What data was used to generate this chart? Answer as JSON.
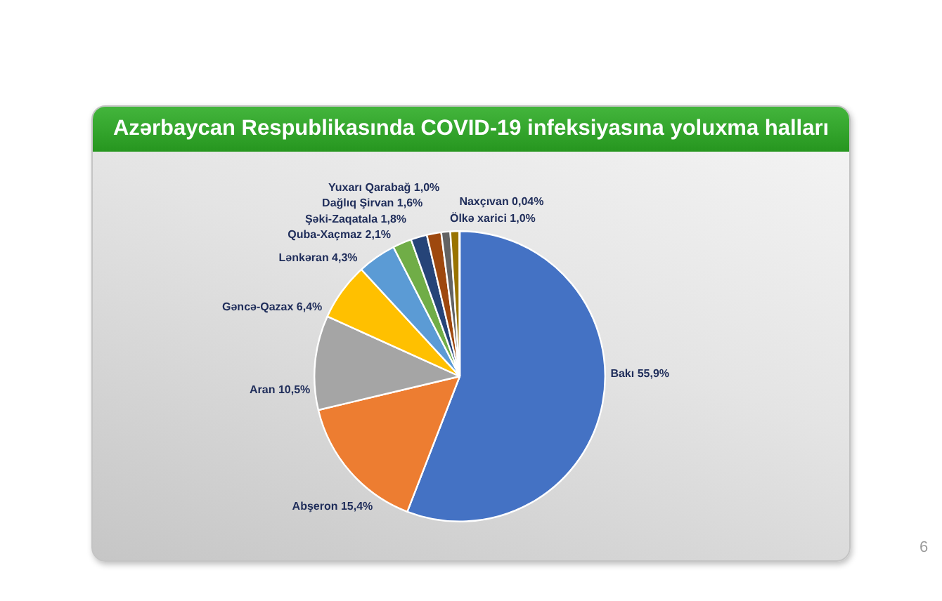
{
  "chart_data": {
    "type": "pie",
    "title": "Azərbaycan Respublikasında COVID-19 infeksiyasına yoluxma halları",
    "categories": [
      "Bakı",
      "Abşeron",
      "Aran",
      "Gəncə-Qazax",
      "Lənkəran",
      "Quba-Xaçmaz",
      "Şəki-Zaqatala",
      "Dağlıq Şirvan",
      "Yuxarı Qarabağ",
      "Ölkə xarici",
      "Naxçıvan"
    ],
    "values": [
      55.9,
      15.4,
      10.5,
      6.4,
      4.3,
      2.1,
      1.8,
      1.6,
      1.0,
      1.0,
      0.04
    ],
    "colors": [
      "#4472c4",
      "#ed7d31",
      "#a5a5a5",
      "#ffc000",
      "#5b9bd5",
      "#70ad47",
      "#264478",
      "#9e480e",
      "#636363",
      "#997300",
      "#255e91"
    ],
    "value_labels": [
      "55,9%",
      "15,4%",
      "10,5%",
      "6,4%",
      "4,3%",
      "2,1%",
      "1,8%",
      "1,6%",
      "1,0%",
      "1,0%",
      "0,04%"
    ],
    "legend": false,
    "annotations": [
      "6"
    ]
  }
}
